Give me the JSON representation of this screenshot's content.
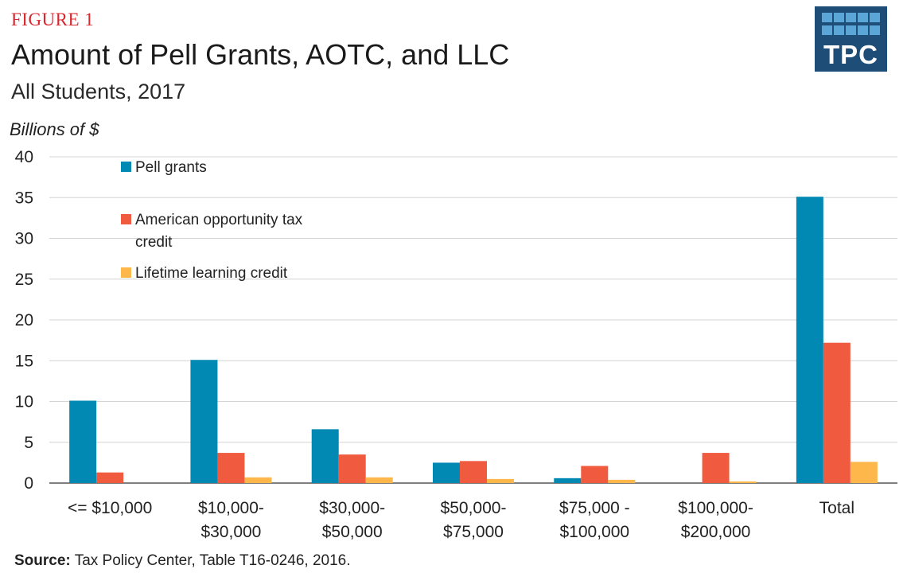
{
  "header": {
    "figure_label": "FIGURE 1",
    "title": "Amount of Pell Grants, AOTC, and LLC",
    "subtitle": "All Students, 2017"
  },
  "logo": {
    "text": "TPC",
    "color": "#1e4d78",
    "accent": "#5aa6d6"
  },
  "source": {
    "label": "Source:",
    "text": "Tax Policy Center, Table T16-0246, 2016."
  },
  "chart_data": {
    "type": "bar",
    "title": "Amount of Pell Grants, AOTC, and LLC",
    "subtitle": "All Students, 2017",
    "ylabel": "Billions of $",
    "xlabel": "",
    "ylim": [
      0,
      40
    ],
    "yticks": [
      0,
      5,
      10,
      15,
      20,
      25,
      30,
      35,
      40
    ],
    "grid": true,
    "legend_position": "top-left",
    "categories": [
      [
        "<= $10,000"
      ],
      [
        "$10,000-",
        "$30,000"
      ],
      [
        "$30,000-",
        "$50,000"
      ],
      [
        "$50,000-",
        "$75,000"
      ],
      [
        "$75,000 -",
        "$100,000"
      ],
      [
        "$100,000-",
        "$200,000"
      ],
      [
        "Total"
      ]
    ],
    "series": [
      {
        "name": "Pell grants",
        "legend_lines": [
          "Pell grants"
        ],
        "color": "#0189b3",
        "values": [
          10.1,
          15.1,
          6.6,
          2.5,
          0.6,
          0,
          35.1
        ]
      },
      {
        "name": "American opportunity tax credit",
        "legend_lines": [
          "American opportunity tax",
          "credit"
        ],
        "color": "#f05a3f",
        "values": [
          1.3,
          3.7,
          3.5,
          2.7,
          2.1,
          3.7,
          17.2
        ]
      },
      {
        "name": "Lifetime learning credit",
        "legend_lines": [
          "Lifetime learning credit"
        ],
        "color": "#fdb74a",
        "values": [
          0,
          0.7,
          0.7,
          0.5,
          0.4,
          0.2,
          2.6
        ]
      }
    ]
  }
}
